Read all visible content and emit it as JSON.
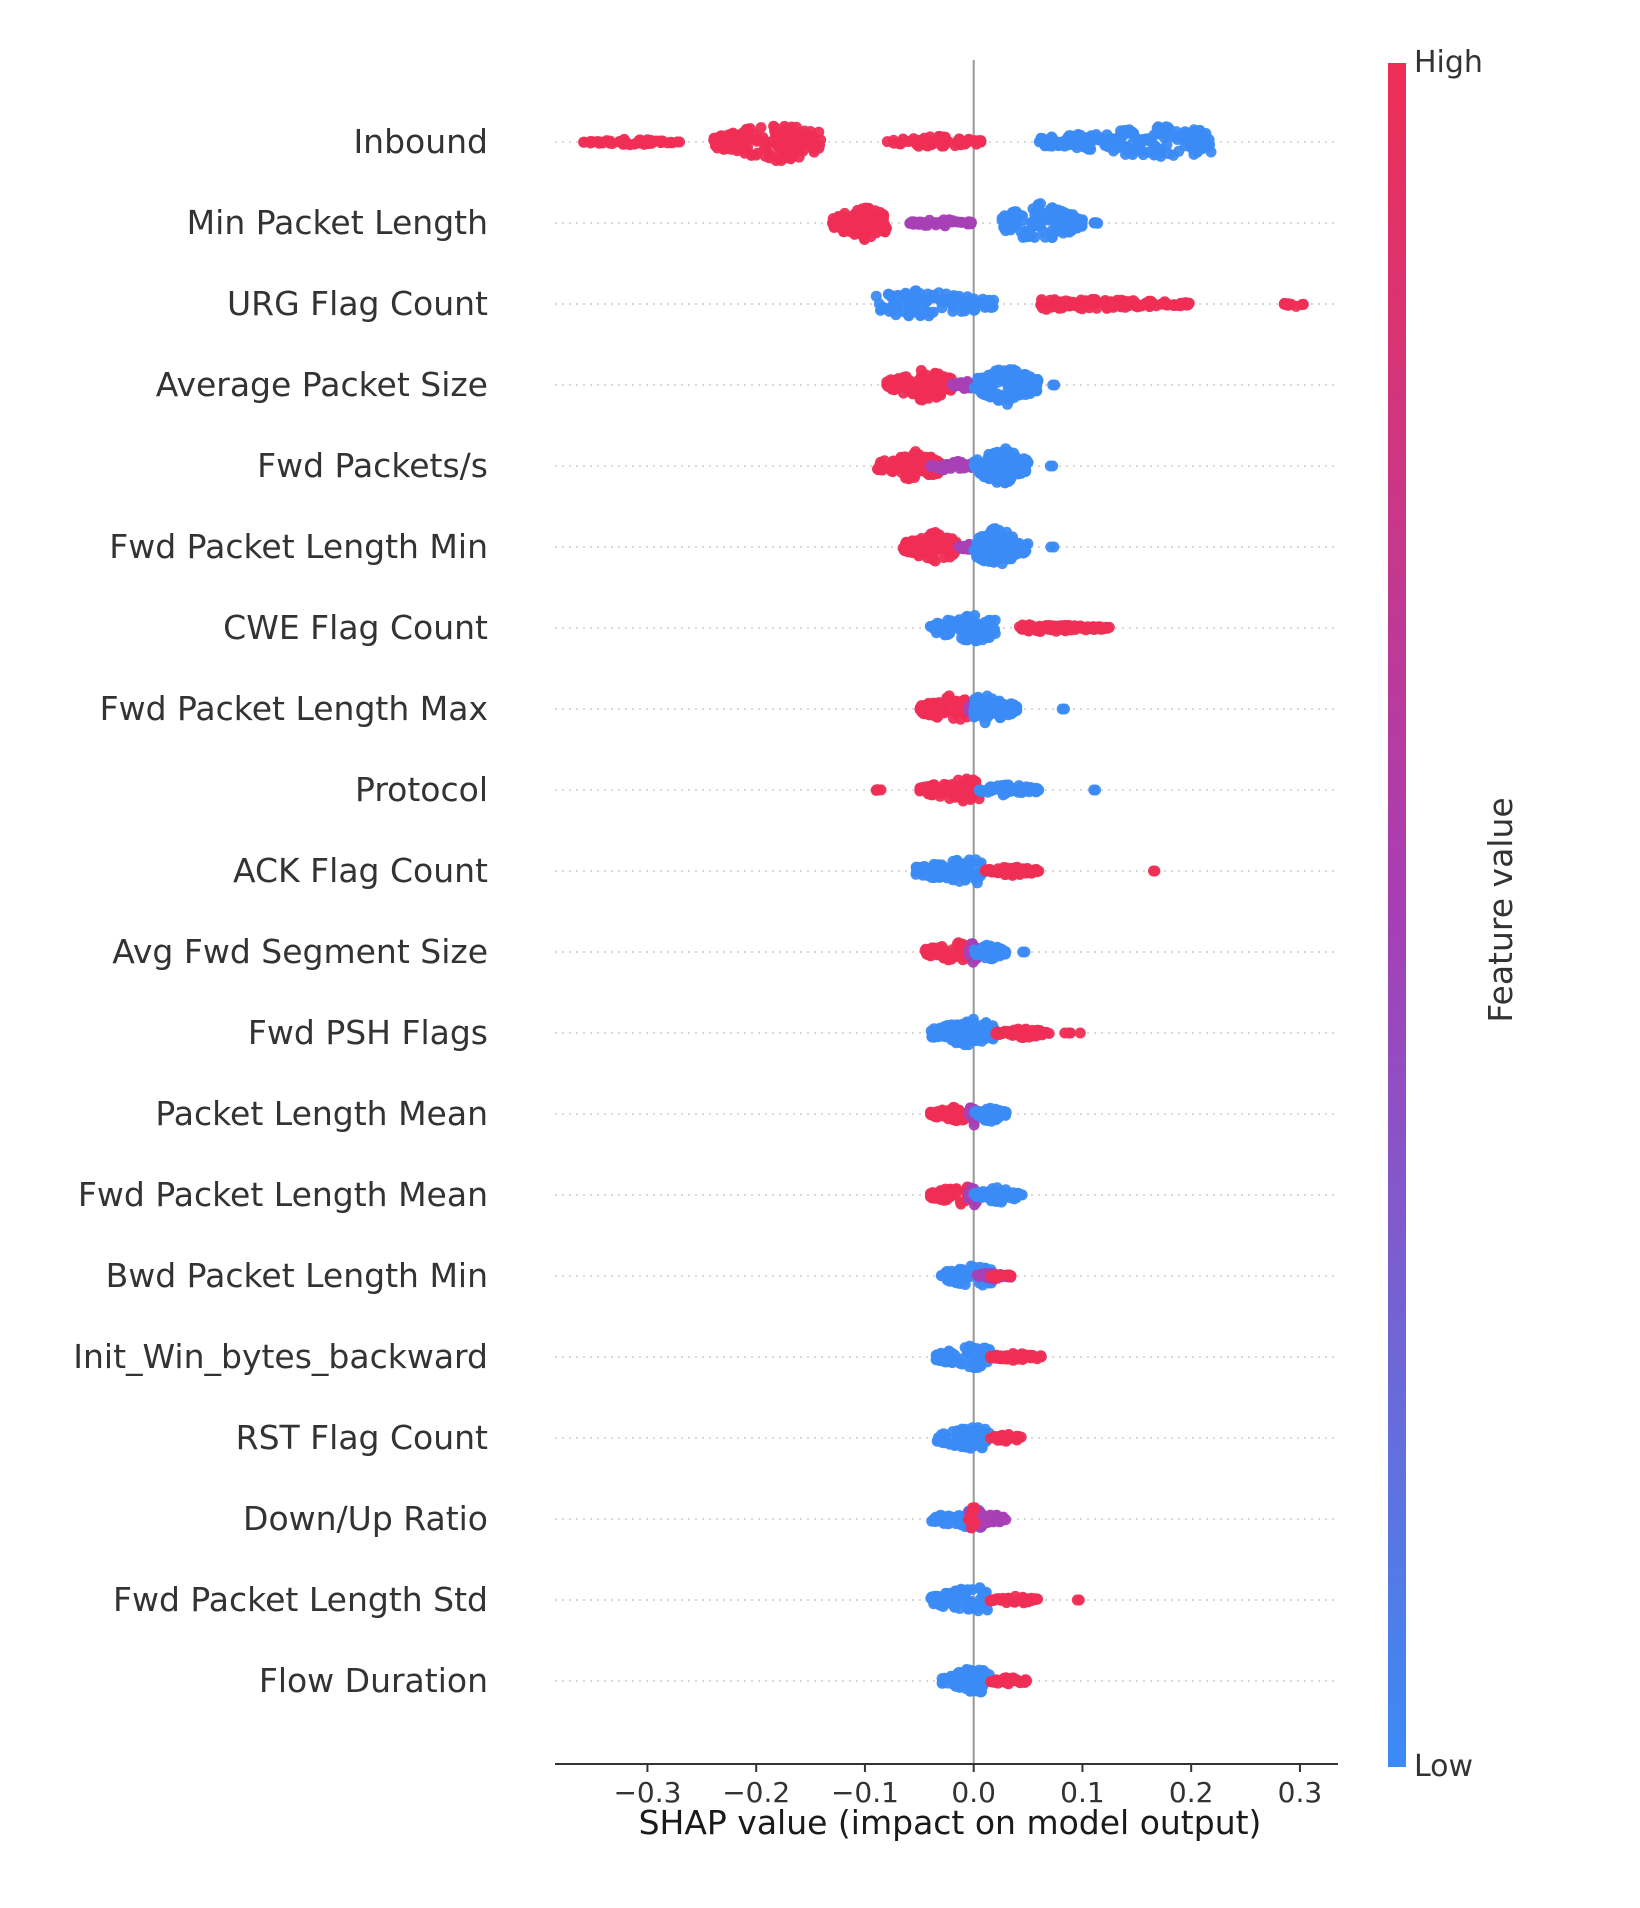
{
  "chart_data": {
    "type": "scatter",
    "subtype": "shap-beeswarm-summary",
    "xlabel": "SHAP value (impact on model output)",
    "xlim": [
      -0.385,
      0.335
    ],
    "xticks": [
      -0.3,
      -0.2,
      -0.1,
      0.0,
      0.1,
      0.2,
      0.3
    ],
    "xtick_labels": [
      "−0.3",
      "−0.2",
      "−0.1",
      "0.0",
      "0.1",
      "0.2",
      "0.3"
    ],
    "colorbar": {
      "title": "Feature value",
      "high_label": "High",
      "low_label": "Low",
      "low_color": "#3b8bf5",
      "high_color": "#ef2e55",
      "mid_color": "#a63fb5"
    },
    "grid": false,
    "features": [
      {
        "name": "Inbound",
        "clusters": [
          {
            "x0": -0.36,
            "x1": -0.27,
            "n": 55,
            "w": 3,
            "color": "high"
          },
          {
            "x0": -0.24,
            "x1": -0.14,
            "n": 150,
            "w": 20,
            "color": "high",
            "center": -0.18
          },
          {
            "x0": -0.08,
            "x1": 0.01,
            "n": 60,
            "w": 6,
            "color": "high"
          },
          {
            "x0": 0.06,
            "x1": 0.22,
            "n": 180,
            "w": 16,
            "color": "low",
            "center": 0.17
          }
        ]
      },
      {
        "name": "Min Packet Length",
        "clusters": [
          {
            "x0": -0.13,
            "x1": -0.08,
            "n": 110,
            "w": 18,
            "color": "high",
            "center": -0.1
          },
          {
            "x0": -0.06,
            "x1": 0.0,
            "n": 40,
            "w": 4,
            "color": "mid"
          },
          {
            "x0": 0.025,
            "x1": 0.1,
            "n": 130,
            "w": 20,
            "color": "low",
            "center": 0.06
          },
          {
            "x0": 0.1,
            "x1": 0.12,
            "n": 4,
            "w": 1,
            "color": "low"
          }
        ]
      },
      {
        "name": "URG Flag Count",
        "clusters": [
          {
            "x0": -0.09,
            "x1": 0.02,
            "n": 110,
            "w": 14,
            "color": "low",
            "center": -0.05
          },
          {
            "x0": 0.06,
            "x1": 0.2,
            "n": 120,
            "w": 6,
            "color": "high",
            "center": 0.08
          },
          {
            "x0": 0.285,
            "x1": 0.305,
            "n": 10,
            "w": 3,
            "color": "high"
          }
        ]
      },
      {
        "name": "Average Packet Size",
        "clusters": [
          {
            "x0": -0.08,
            "x1": -0.02,
            "n": 100,
            "w": 16,
            "color": "high",
            "center": -0.045
          },
          {
            "x0": -0.02,
            "x1": 0.005,
            "n": 25,
            "w": 4,
            "color": "mid"
          },
          {
            "x0": 0.0,
            "x1": 0.06,
            "n": 110,
            "w": 20,
            "color": "low",
            "center": 0.03
          },
          {
            "x0": 0.07,
            "x1": 0.075,
            "n": 2,
            "w": 0,
            "color": "low"
          }
        ]
      },
      {
        "name": "Fwd Packets/s",
        "clusters": [
          {
            "x0": -0.09,
            "x1": -0.03,
            "n": 100,
            "w": 15,
            "color": "high",
            "center": -0.055
          },
          {
            "x0": -0.04,
            "x1": 0.0,
            "n": 40,
            "w": 6,
            "color": "mid"
          },
          {
            "x0": 0.0,
            "x1": 0.05,
            "n": 110,
            "w": 20,
            "color": "low",
            "center": 0.025
          },
          {
            "x0": 0.07,
            "x1": 0.075,
            "n": 2,
            "w": 0,
            "color": "low"
          }
        ]
      },
      {
        "name": "Fwd Packet Length Min",
        "clusters": [
          {
            "x0": -0.065,
            "x1": -0.015,
            "n": 90,
            "w": 15,
            "color": "high",
            "center": -0.035
          },
          {
            "x0": -0.015,
            "x1": 0.005,
            "n": 20,
            "w": 3,
            "color": "mid"
          },
          {
            "x0": 0.0,
            "x1": 0.05,
            "n": 100,
            "w": 20,
            "color": "low",
            "center": 0.02
          },
          {
            "x0": 0.07,
            "x1": 0.075,
            "n": 2,
            "w": 0,
            "color": "low"
          }
        ]
      },
      {
        "name": "CWE Flag Count",
        "clusters": [
          {
            "x0": -0.04,
            "x1": 0.02,
            "n": 80,
            "w": 14,
            "color": "low",
            "center": 0.0
          },
          {
            "x0": 0.04,
            "x1": 0.125,
            "n": 90,
            "w": 4,
            "color": "high",
            "center": 0.06
          }
        ]
      },
      {
        "name": "Fwd Packet Length Max",
        "clusters": [
          {
            "x0": -0.05,
            "x1": -0.005,
            "n": 80,
            "w": 14,
            "color": "high",
            "center": -0.02
          },
          {
            "x0": -0.005,
            "x1": 0.005,
            "n": 15,
            "w": 10,
            "color": "mid"
          },
          {
            "x0": 0.0,
            "x1": 0.04,
            "n": 80,
            "w": 14,
            "color": "low",
            "center": 0.01
          },
          {
            "x0": 0.08,
            "x1": 0.085,
            "n": 2,
            "w": 0,
            "color": "low"
          }
        ]
      },
      {
        "name": "Protocol",
        "clusters": [
          {
            "x0": -0.09,
            "x1": -0.085,
            "n": 5,
            "w": 1,
            "color": "high"
          },
          {
            "x0": -0.05,
            "x1": 0.005,
            "n": 80,
            "w": 12,
            "color": "high",
            "center": -0.005
          },
          {
            "x0": 0.005,
            "x1": 0.06,
            "n": 60,
            "w": 6,
            "color": "low"
          },
          {
            "x0": 0.11,
            "x1": 0.115,
            "n": 2,
            "w": 0,
            "color": "low"
          }
        ]
      },
      {
        "name": "ACK Flag Count",
        "clusters": [
          {
            "x0": -0.055,
            "x1": 0.01,
            "n": 90,
            "w": 14,
            "color": "low",
            "center": 0.0
          },
          {
            "x0": 0.01,
            "x1": 0.06,
            "n": 60,
            "w": 5,
            "color": "high"
          },
          {
            "x0": 0.165,
            "x1": 0.17,
            "n": 2,
            "w": 0,
            "color": "high"
          }
        ]
      },
      {
        "name": "Avg Fwd Segment Size",
        "clusters": [
          {
            "x0": -0.045,
            "x1": -0.005,
            "n": 60,
            "w": 10,
            "color": "high",
            "center": -0.015
          },
          {
            "x0": -0.005,
            "x1": 0.005,
            "n": 15,
            "w": 12,
            "color": "mid"
          },
          {
            "x0": 0.0,
            "x1": 0.03,
            "n": 50,
            "w": 8,
            "color": "low"
          },
          {
            "x0": 0.045,
            "x1": 0.05,
            "n": 2,
            "w": 0,
            "color": "low"
          }
        ]
      },
      {
        "name": "Fwd PSH Flags",
        "clusters": [
          {
            "x0": -0.04,
            "x1": 0.02,
            "n": 90,
            "w": 14,
            "color": "low",
            "center": 0.0
          },
          {
            "x0": 0.02,
            "x1": 0.07,
            "n": 60,
            "w": 5,
            "color": "high"
          },
          {
            "x0": 0.08,
            "x1": 0.1,
            "n": 4,
            "w": 0,
            "color": "high"
          }
        ]
      },
      {
        "name": "Packet Length Mean",
        "clusters": [
          {
            "x0": -0.04,
            "x1": -0.005,
            "n": 50,
            "w": 8,
            "color": "high",
            "center": -0.015
          },
          {
            "x0": -0.005,
            "x1": 0.005,
            "n": 15,
            "w": 12,
            "color": "mid"
          },
          {
            "x0": 0.0,
            "x1": 0.03,
            "n": 50,
            "w": 8,
            "color": "low"
          }
        ]
      },
      {
        "name": "Fwd Packet Length Mean",
        "clusters": [
          {
            "x0": -0.04,
            "x1": -0.005,
            "n": 50,
            "w": 10,
            "color": "high",
            "center": -0.01
          },
          {
            "x0": -0.005,
            "x1": 0.005,
            "n": 15,
            "w": 12,
            "color": "mid"
          },
          {
            "x0": 0.0,
            "x1": 0.045,
            "n": 55,
            "w": 8,
            "color": "low"
          }
        ]
      },
      {
        "name": "Bwd Packet Length Min",
        "clusters": [
          {
            "x0": -0.03,
            "x1": 0.02,
            "n": 70,
            "w": 12,
            "color": "low",
            "center": 0.0
          },
          {
            "x0": 0.0,
            "x1": 0.035,
            "n": 30,
            "w": 4,
            "color": "mid"
          },
          {
            "x0": 0.015,
            "x1": 0.035,
            "n": 15,
            "w": 3,
            "color": "high"
          }
        ]
      },
      {
        "name": "Init_Win_bytes_backward",
        "clusters": [
          {
            "x0": -0.035,
            "x1": 0.015,
            "n": 70,
            "w": 12,
            "color": "low",
            "center": 0.0
          },
          {
            "x0": 0.015,
            "x1": 0.065,
            "n": 45,
            "w": 4,
            "color": "high"
          }
        ]
      },
      {
        "name": "RST Flag Count",
        "clusters": [
          {
            "x0": -0.035,
            "x1": 0.015,
            "n": 70,
            "w": 12,
            "color": "low",
            "center": 0.0
          },
          {
            "x0": 0.015,
            "x1": 0.045,
            "n": 35,
            "w": 4,
            "color": "high"
          }
        ]
      },
      {
        "name": "Down/Up Ratio",
        "clusters": [
          {
            "x0": -0.04,
            "x1": 0.01,
            "n": 60,
            "w": 10,
            "color": "low",
            "center": 0.0
          },
          {
            "x0": -0.005,
            "x1": 0.03,
            "n": 40,
            "w": 10,
            "color": "mid",
            "center": 0.0
          },
          {
            "x0": -0.005,
            "x1": 0.005,
            "n": 10,
            "w": 14,
            "color": "high"
          }
        ]
      },
      {
        "name": "Fwd Packet Length Std",
        "clusters": [
          {
            "x0": -0.04,
            "x1": 0.015,
            "n": 80,
            "w": 14,
            "color": "low",
            "center": 0.0
          },
          {
            "x0": 0.015,
            "x1": 0.06,
            "n": 45,
            "w": 4,
            "color": "high"
          },
          {
            "x0": 0.095,
            "x1": 0.1,
            "n": 2,
            "w": 0,
            "color": "high"
          }
        ]
      },
      {
        "name": "Flow Duration",
        "clusters": [
          {
            "x0": -0.03,
            "x1": 0.015,
            "n": 70,
            "w": 14,
            "color": "low",
            "center": 0.0
          },
          {
            "x0": 0.015,
            "x1": 0.05,
            "n": 35,
            "w": 4,
            "color": "high"
          }
        ]
      }
    ]
  }
}
